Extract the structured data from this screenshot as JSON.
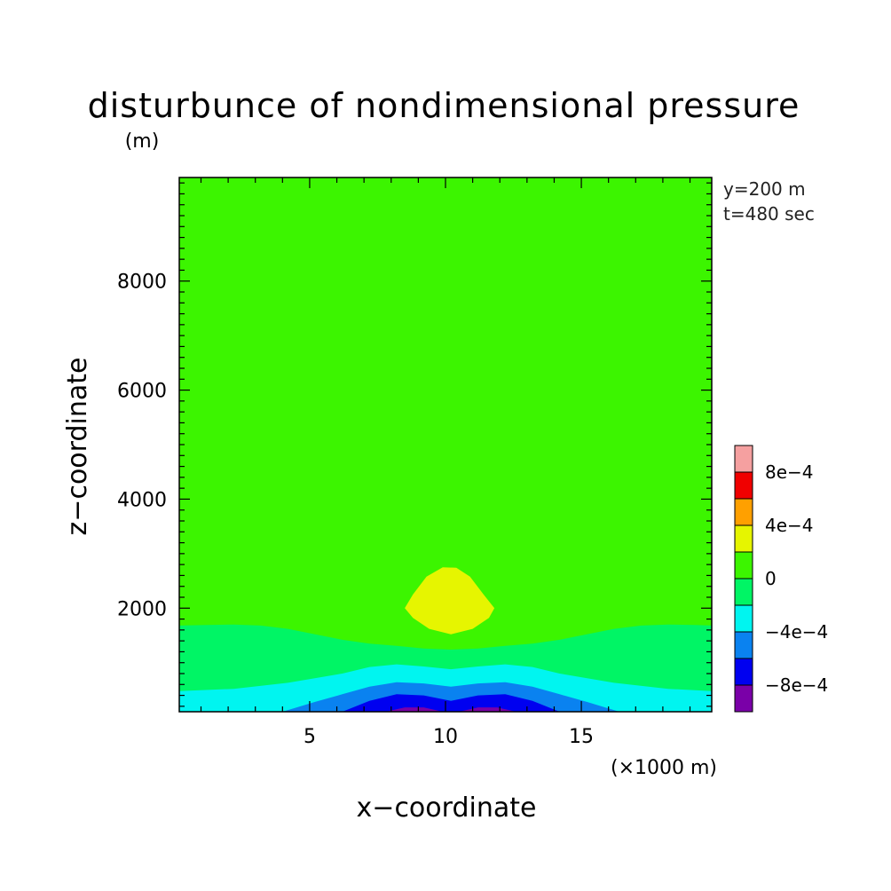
{
  "chart_data": {
    "type": "heatmap",
    "title": "disturbunce of nondimensional pressure",
    "xlabel": "x−coordinate",
    "ylabel": "z−coordinate",
    "x_units": "(×1000 m)",
    "y_units": "(m)",
    "xlim": [
      0.2,
      19.8
    ],
    "ylim": [
      100,
      9900
    ],
    "x_ticks": [
      {
        "value": 5,
        "label": "5"
      },
      {
        "value": 10,
        "label": "10"
      },
      {
        "value": 15,
        "label": "15"
      }
    ],
    "y_ticks": [
      {
        "value": 2000,
        "label": "2000"
      },
      {
        "value": 4000,
        "label": "4000"
      },
      {
        "value": 6000,
        "label": "6000"
      },
      {
        "value": 8000,
        "label": "8000"
      }
    ],
    "annotations": [
      "y=200 m",
      "t=480 sec"
    ],
    "colorbar": {
      "levels": [
        -0.001,
        -0.0008,
        -0.0006,
        -0.0004,
        -0.0002,
        0,
        0.0002,
        0.0004,
        0.0006,
        0.0008,
        0.001
      ],
      "colors": [
        "#7a00a8",
        "#0000f0",
        "#0a82f0",
        "#00f5f0",
        "#00f565",
        "#3cf500",
        "#e6f500",
        "#ffa000",
        "#f00000",
        "#f5a0a0"
      ],
      "labels": [
        {
          "value": -0.0008,
          "label": "−8e−4"
        },
        {
          "value": -0.0004,
          "label": "−4e−4"
        },
        {
          "value": 0,
          "label": "0"
        },
        {
          "value": 0.0004,
          "label": "4e−4"
        },
        {
          "value": 0.0008,
          "label": "8e−4"
        }
      ]
    },
    "background_level": 0.0001,
    "contour_regions": [
      {
        "name": "band-0-to-neg2e-4",
        "level": -0.0001,
        "points": [
          [
            0.2,
            1680
          ],
          [
            1.2,
            1690
          ],
          [
            2.2,
            1700
          ],
          [
            3.2,
            1680
          ],
          [
            4.2,
            1620
          ],
          [
            5.2,
            1520
          ],
          [
            6.2,
            1420
          ],
          [
            7.2,
            1350
          ],
          [
            8.2,
            1310
          ],
          [
            9.2,
            1260
          ],
          [
            10.2,
            1240
          ],
          [
            11.2,
            1260
          ],
          [
            12.2,
            1310
          ],
          [
            13.2,
            1350
          ],
          [
            14.2,
            1420
          ],
          [
            15.2,
            1520
          ],
          [
            16.2,
            1620
          ],
          [
            17.2,
            1680
          ],
          [
            18.2,
            1700
          ],
          [
            19.2,
            1690
          ],
          [
            19.8,
            1680
          ],
          [
            19.8,
            100
          ],
          [
            0.2,
            100
          ]
        ]
      },
      {
        "name": "band-neg2e-4-to-neg4e-4",
        "level": -0.0003,
        "points": [
          [
            0.2,
            480
          ],
          [
            2.2,
            520
          ],
          [
            4.2,
            630
          ],
          [
            6.2,
            800
          ],
          [
            7.2,
            920
          ],
          [
            8.2,
            970
          ],
          [
            9.2,
            930
          ],
          [
            10.2,
            880
          ],
          [
            11.2,
            930
          ],
          [
            12.2,
            970
          ],
          [
            13.2,
            920
          ],
          [
            14.2,
            800
          ],
          [
            16.2,
            630
          ],
          [
            18.2,
            520
          ],
          [
            19.8,
            480
          ],
          [
            19.8,
            100
          ],
          [
            0.2,
            100
          ]
        ]
      },
      {
        "name": "band-neg4e-4-to-neg6e-4",
        "level": -0.0005,
        "points": [
          [
            4.0,
            100
          ],
          [
            5.2,
            280
          ],
          [
            6.2,
            420
          ],
          [
            7.2,
            560
          ],
          [
            8.2,
            640
          ],
          [
            9.2,
            620
          ],
          [
            10.2,
            560
          ],
          [
            11.2,
            620
          ],
          [
            12.2,
            640
          ],
          [
            13.2,
            560
          ],
          [
            14.2,
            420
          ],
          [
            15.2,
            280
          ],
          [
            16.4,
            100
          ]
        ]
      },
      {
        "name": "band-neg6e-4-to-neg8e-4",
        "level": -0.0007,
        "points": [
          [
            6.2,
            100
          ],
          [
            7.2,
            300
          ],
          [
            8.2,
            420
          ],
          [
            9.2,
            400
          ],
          [
            10.2,
            300
          ],
          [
            11.2,
            400
          ],
          [
            12.2,
            420
          ],
          [
            13.2,
            300
          ],
          [
            14.2,
            100
          ]
        ]
      },
      {
        "name": "band-neg8e-4-to-neg1e-3-left",
        "level": -0.0009,
        "points": [
          [
            7.8,
            100
          ],
          [
            8.5,
            180
          ],
          [
            9.2,
            180
          ],
          [
            9.9,
            100
          ]
        ]
      },
      {
        "name": "band-neg8e-4-to-neg1e-3-right",
        "level": -0.0009,
        "points": [
          [
            10.5,
            100
          ],
          [
            11.2,
            180
          ],
          [
            11.9,
            180
          ],
          [
            12.6,
            100
          ]
        ]
      },
      {
        "name": "band-2e-4-to-4e-4",
        "level": 0.0003,
        "points": [
          [
            8.5,
            2000
          ],
          [
            8.8,
            2250
          ],
          [
            9.3,
            2580
          ],
          [
            9.9,
            2750
          ],
          [
            10.4,
            2740
          ],
          [
            10.9,
            2580
          ],
          [
            11.4,
            2250
          ],
          [
            11.8,
            2000
          ],
          [
            11.6,
            1820
          ],
          [
            11.0,
            1620
          ],
          [
            10.2,
            1520
          ],
          [
            9.4,
            1620
          ],
          [
            8.8,
            1820
          ]
        ]
      }
    ]
  }
}
